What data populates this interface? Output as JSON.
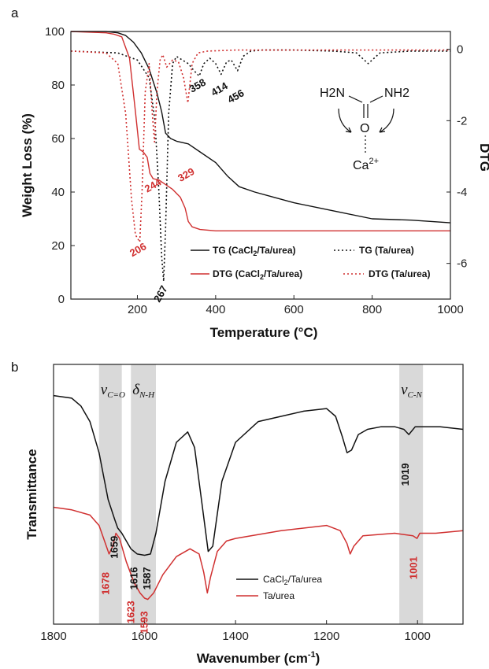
{
  "colors": {
    "black_series": "#111111",
    "red_series": "#d03030",
    "band": "#d9d9d9"
  },
  "chart_data": [
    {
      "panel_label": "a",
      "type": "line",
      "xlabel": "Temperature (°C)",
      "ylabel": "Weight Loss (%)",
      "y2label": "DTG",
      "xlim": [
        30,
        1000
      ],
      "ylim": [
        0,
        100
      ],
      "y2lim": [
        -7,
        0.5
      ],
      "xticks": [
        200,
        400,
        600,
        800,
        1000
      ],
      "yticks": [
        0,
        20,
        40,
        60,
        80,
        100
      ],
      "y2ticks": [
        0,
        -2,
        -4,
        -6
      ],
      "legend_position": "inside-bottom",
      "series": [
        {
          "name": "TG (CaCl2/Ta/urea)",
          "legend_main": "TG (CaCl",
          "legend_sub": "2",
          "legend_tail": "/Ta/urea)",
          "axis": "left",
          "color": "#111111",
          "style": "solid",
          "x": [
            30,
            120,
            150,
            170,
            190,
            210,
            230,
            250,
            262,
            272,
            285,
            300,
            330,
            360,
            400,
            430,
            460,
            500,
            550,
            600,
            700,
            800,
            900,
            1000
          ],
          "y": [
            100,
            100,
            99.5,
            98.5,
            96,
            92,
            86,
            77,
            70,
            62,
            60,
            59,
            58,
            55,
            51,
            46,
            42,
            40,
            38,
            36,
            33,
            30,
            29.5,
            28.5
          ]
        },
        {
          "name": "TG (Ta/urea)",
          "legend_main": "TG (Ta/urea)",
          "legend_sub": "",
          "legend_tail": "",
          "axis": "right",
          "color": "#111111",
          "style": "dotted",
          "x": [
            30,
            150,
            200,
            230,
            245,
            255,
            262,
            267,
            272,
            280,
            290,
            300,
            315,
            330,
            345,
            358,
            370,
            385,
            400,
            414,
            428,
            440,
            456,
            470,
            490,
            520,
            600,
            700,
            760,
            790,
            820,
            900,
            1000
          ],
          "y": [
            -0.05,
            -0.1,
            -0.3,
            -0.8,
            -2.0,
            -4.0,
            -5.8,
            -6.5,
            -5.0,
            -1.8,
            -0.4,
            -0.2,
            -0.3,
            -0.4,
            -0.6,
            -0.75,
            -0.4,
            -0.25,
            -0.4,
            -0.7,
            -0.35,
            -0.3,
            -0.6,
            -0.2,
            -0.05,
            -0.02,
            -0.02,
            -0.05,
            -0.1,
            -0.4,
            -0.1,
            -0.05,
            -0.05
          ]
        },
        {
          "name": "DTG (CaCl2/Ta/urea)",
          "legend_main": "DTG (CaCl",
          "legend_sub": "2",
          "legend_tail": "/Ta/urea)",
          "axis": "left",
          "color": "#d03030",
          "style": "solid",
          "x": [
            30,
            120,
            140,
            160,
            180,
            195,
            205,
            215,
            225,
            232,
            240,
            255,
            270,
            290,
            310,
            322,
            330,
            340,
            360,
            400,
            600,
            800,
            1000
          ],
          "y": [
            100,
            99.5,
            99,
            98,
            90,
            70,
            56,
            55,
            53,
            47,
            45,
            44.5,
            43,
            41,
            38,
            34,
            29,
            27,
            26,
            25.5,
            25.5,
            25.5,
            25.5
          ]
        },
        {
          "name": "DTG (Ta/urea)",
          "legend_main": "DTG (Ta/urea)",
          "legend_sub": "",
          "legend_tail": "",
          "axis": "right",
          "color": "#d03030",
          "style": "dotted",
          "x": [
            30,
            120,
            150,
            170,
            185,
            195,
            206,
            212,
            220,
            230,
            238,
            244,
            250,
            258,
            265,
            275,
            290,
            305,
            318,
            329,
            340,
            355,
            380,
            450,
            600,
            800,
            1000
          ],
          "y": [
            -0.05,
            -0.1,
            -0.4,
            -1.8,
            -4.2,
            -5.2,
            -5.4,
            -4.0,
            -1.2,
            -0.4,
            -1.8,
            -2.6,
            -1.2,
            -0.3,
            -0.15,
            -0.5,
            -0.3,
            -0.35,
            -0.8,
            -1.5,
            -0.4,
            -0.1,
            -0.05,
            -0.02,
            -0.02,
            -0.02,
            -0.02
          ]
        }
      ],
      "annotations": [
        {
          "text": "358",
          "x": 358,
          "y": -1.1,
          "axis": "right",
          "color": "#111111"
        },
        {
          "text": "414",
          "x": 414,
          "y": -1.2,
          "axis": "right",
          "color": "#111111"
        },
        {
          "text": "456",
          "x": 456,
          "y": -1.4,
          "axis": "right",
          "color": "#111111"
        },
        {
          "text": "267",
          "x": 267,
          "y": -6.9,
          "axis": "right",
          "color": "#111111"
        },
        {
          "text": "244",
          "x": 244,
          "y": -3.9,
          "axis": "right",
          "color": "#d03030"
        },
        {
          "text": "329",
          "x": 329,
          "y": -3.6,
          "axis": "right",
          "color": "#d03030"
        },
        {
          "text": "206",
          "x": 206,
          "y": -5.7,
          "axis": "right",
          "color": "#d03030"
        }
      ],
      "inset": {
        "left_group": "H2N",
        "right_group": "NH2",
        "atom": "O",
        "ion": "Ca",
        "charge": "2+"
      }
    },
    {
      "panel_label": "b",
      "type": "line",
      "xlabel": "Wavenumber (cm-1)",
      "xlabel_main": "Wavenumber (cm",
      "xlabel_sup": "-1",
      "xlabel_close": ")",
      "ylabel": "Transmittance",
      "xlim": [
        1800,
        900
      ],
      "xticks": [
        1800,
        1600,
        1400,
        1200,
        1000
      ],
      "y_range_arbitrary": [
        0,
        100
      ],
      "legend_position": "bottom-center",
      "bands": [
        {
          "from": 1700,
          "to": 1650,
          "label": "v",
          "sub": "C=O"
        },
        {
          "from": 1630,
          "to": 1575,
          "label": "δ",
          "sub": "N-H"
        },
        {
          "from": 1040,
          "to": 988,
          "label": "v",
          "sub": "C-N"
        }
      ],
      "series": [
        {
          "name": "CaCl2/Ta/urea",
          "legend_main": "CaCl",
          "legend_sub": "2",
          "legend_tail": "/Ta/urea",
          "color": "#111111",
          "x": [
            1800,
            1760,
            1740,
            1720,
            1700,
            1680,
            1665,
            1659,
            1650,
            1630,
            1616,
            1600,
            1587,
            1575,
            1555,
            1530,
            1505,
            1490,
            1475,
            1460,
            1450,
            1430,
            1400,
            1350,
            1300,
            1250,
            1200,
            1180,
            1165,
            1155,
            1145,
            1130,
            1110,
            1080,
            1050,
            1030,
            1019,
            1005,
            980,
            950,
            900
          ],
          "y": [
            88,
            87,
            84,
            78,
            66,
            48,
            40,
            37,
            35,
            29,
            27,
            26.5,
            27,
            35,
            55,
            70,
            74,
            68,
            48,
            28,
            30,
            55,
            70,
            78,
            80,
            82,
            83,
            80,
            72,
            66,
            67,
            73,
            75,
            76,
            76,
            75,
            73,
            76,
            76,
            76,
            75
          ]
        },
        {
          "name": "Ta/urea",
          "legend_main": "Ta/urea",
          "legend_sub": "",
          "legend_tail": "",
          "color": "#d03030",
          "x": [
            1800,
            1760,
            1720,
            1700,
            1690,
            1678,
            1670,
            1663,
            1655,
            1640,
            1623,
            1610,
            1600,
            1593,
            1580,
            1560,
            1530,
            1500,
            1480,
            1470,
            1462,
            1455,
            1440,
            1420,
            1400,
            1300,
            1200,
            1170,
            1155,
            1148,
            1140,
            1120,
            1050,
            1010,
            1001,
            995,
            960,
            900
          ],
          "y": [
            45,
            44,
            42,
            38,
            33,
            27,
            30,
            35,
            33,
            24,
            16,
            12,
            10,
            9.5,
            12,
            19,
            26,
            29,
            27,
            20,
            12,
            18,
            28,
            32,
            33,
            36,
            38,
            36,
            31,
            27,
            30,
            34,
            35,
            34,
            33,
            35,
            35,
            36
          ]
        }
      ],
      "annotations": [
        {
          "text": "1659",
          "x": 1659,
          "y": 34,
          "color": "#111111"
        },
        {
          "text": "1616",
          "x": 1616,
          "y": 22,
          "color": "#111111"
        },
        {
          "text": "1587",
          "x": 1587,
          "y": 22,
          "color": "#111111"
        },
        {
          "text": "1019",
          "x": 1019,
          "y": 62,
          "color": "#111111"
        },
        {
          "text": "1678",
          "x": 1678,
          "y": 20,
          "color": "#d03030"
        },
        {
          "text": "1623",
          "x": 1623,
          "y": 9,
          "color": "#d03030"
        },
        {
          "text": "1593",
          "x": 1593,
          "y": 5,
          "color": "#d03030"
        },
        {
          "text": "1001",
          "x": 1001,
          "y": 26,
          "color": "#d03030"
        }
      ]
    }
  ]
}
